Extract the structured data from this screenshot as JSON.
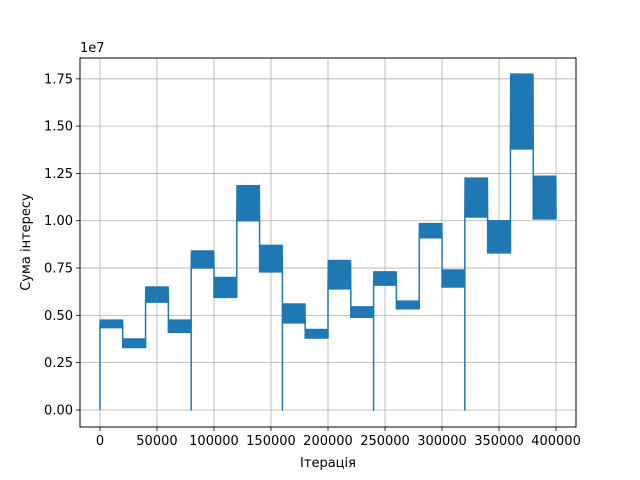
{
  "chart_data": {
    "type": "line",
    "xlabel": "Ітерація",
    "ylabel": "Сума інтересу",
    "y_offset_label": "1e7",
    "xlim": [
      -17500,
      417500
    ],
    "ylim": [
      -0.09,
      1.86
    ],
    "x_ticks": [
      0,
      50000,
      100000,
      150000,
      200000,
      250000,
      300000,
      350000,
      400000
    ],
    "y_ticks": [
      0.0,
      0.25,
      0.5,
      0.75,
      1.0,
      1.25,
      1.5,
      1.75
    ],
    "x_tick_labels": [
      "0",
      "50000",
      "100000",
      "150000",
      "200000",
      "250000",
      "300000",
      "350000",
      "400000"
    ],
    "y_tick_labels": [
      "0.00",
      "0.25",
      "0.50",
      "0.75",
      "1.00",
      "1.25",
      "1.50",
      "1.75"
    ],
    "grid": true,
    "series": [
      {
        "color": "#1f77b4",
        "segments": [
          {
            "x": [
              0,
              20000
            ],
            "low": 4.35,
            "high": 4.75,
            "start_drop": true
          },
          {
            "x": [
              20000,
              40000
            ],
            "low": 3.3,
            "high": 3.75
          },
          {
            "x": [
              40000,
              60000
            ],
            "low": 5.7,
            "high": 6.5
          },
          {
            "x": [
              60000,
              80000
            ],
            "low": 4.1,
            "high": 4.75
          },
          {
            "x": [
              80000,
              100000
            ],
            "low": 7.5,
            "high": 8.4,
            "start_drop": true
          },
          {
            "x": [
              100000,
              120000
            ],
            "low": 5.95,
            "high": 7.0
          },
          {
            "x": [
              120000,
              140000
            ],
            "low": 10.0,
            "high": 11.85
          },
          {
            "x": [
              140000,
              160000
            ],
            "low": 7.3,
            "high": 8.7
          },
          {
            "x": [
              160000,
              180000
            ],
            "low": 4.6,
            "high": 5.6,
            "start_drop": true
          },
          {
            "x": [
              180000,
              200000
            ],
            "low": 3.8,
            "high": 4.25
          },
          {
            "x": [
              200000,
              220000
            ],
            "low": 6.4,
            "high": 7.9
          },
          {
            "x": [
              220000,
              240000
            ],
            "low": 4.9,
            "high": 5.45
          },
          {
            "x": [
              240000,
              260000
            ],
            "low": 6.6,
            "high": 7.3,
            "start_drop": true
          },
          {
            "x": [
              260000,
              280000
            ],
            "low": 5.35,
            "high": 5.75
          },
          {
            "x": [
              280000,
              300000
            ],
            "low": 9.1,
            "high": 9.85
          },
          {
            "x": [
              300000,
              320000
            ],
            "low": 6.5,
            "high": 7.4
          },
          {
            "x": [
              320000,
              340000
            ],
            "low": 10.2,
            "high": 12.25,
            "start_drop": true
          },
          {
            "x": [
              340000,
              360000
            ],
            "low": 8.3,
            "high": 10.0
          },
          {
            "x": [
              360000,
              380000
            ],
            "low": 13.8,
            "high": 17.75
          },
          {
            "x": [
              380000,
              400000
            ],
            "low": 10.1,
            "high": 12.35
          }
        ]
      }
    ]
  }
}
